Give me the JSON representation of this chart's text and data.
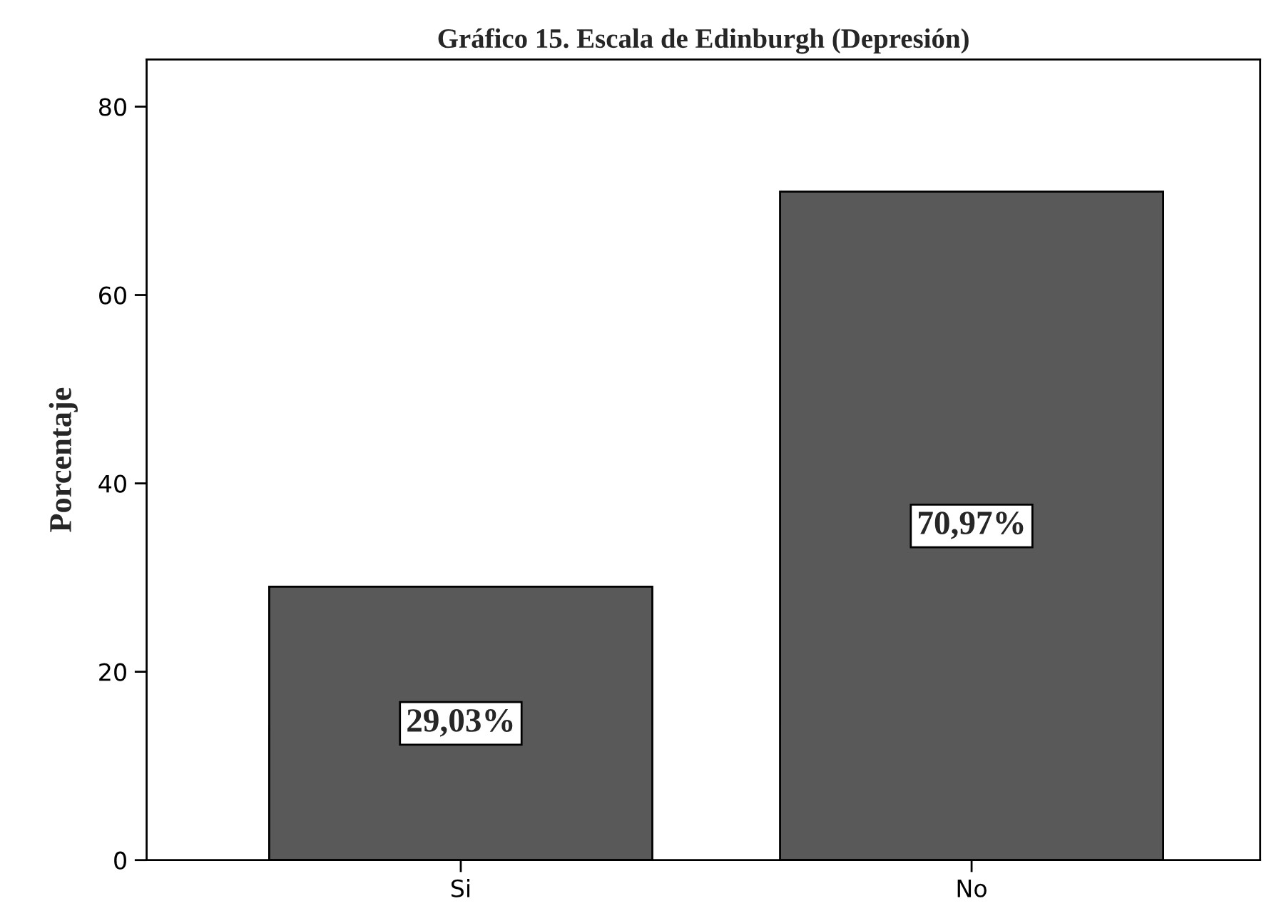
{
  "chart_data": {
    "type": "bar",
    "title": "Gráfico 15. Escala de Edinburgh (Depresión)",
    "ylabel": "Porcentaje",
    "categories": [
      "Si",
      "No"
    ],
    "values": [
      29.03,
      70.97
    ],
    "color": "#595959",
    "value_labels": [
      "29,03%",
      "70,97%"
    ],
    "ylim": [
      0,
      85
    ],
    "yticks": [
      0,
      20,
      40,
      60,
      80
    ],
    "grid": false,
    "legend": false
  }
}
